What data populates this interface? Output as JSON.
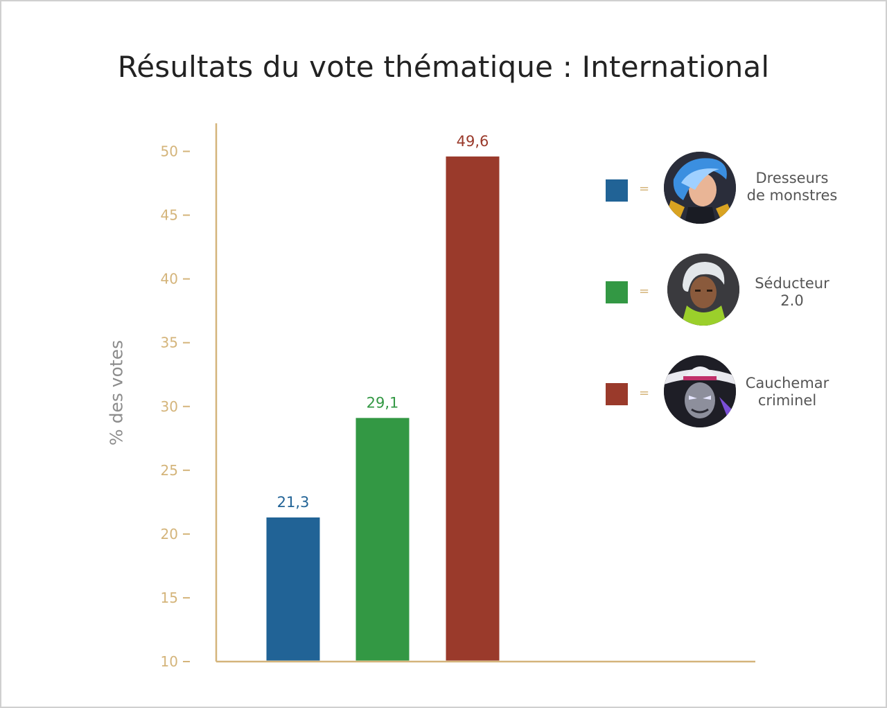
{
  "chart_data": {
    "type": "bar",
    "title": "Résultats du vote thématique : International",
    "ylabel": "% des votes",
    "xlabel": "",
    "ylim": [
      10,
      52
    ],
    "yticks": [
      10,
      15,
      20,
      25,
      30,
      35,
      40,
      45,
      50
    ],
    "categories": [
      "Dresseurs de monstres",
      "Séducteur 2.0",
      "Cauchemar criminel"
    ],
    "values": [
      21.3,
      29.1,
      49.6
    ],
    "value_labels": [
      "21,3",
      "29,1",
      "49,6"
    ],
    "colors": [
      "#216396",
      "#339844",
      "#9a3a2b"
    ],
    "legend_placement": "right",
    "grid": false
  },
  "legend": [
    {
      "symbol": "=",
      "line1": "Dresseurs",
      "line2": "de monstres",
      "avatar_icon": "blue-haired-character-icon"
    },
    {
      "symbol": "=",
      "line1": "Séducteur",
      "line2": "2.0",
      "avatar_icon": "white-haired-character-icon"
    },
    {
      "symbol": "=",
      "line1": "Cauchemar",
      "line2": "criminel",
      "avatar_icon": "masked-villain-character-icon"
    }
  ],
  "axis_color": "#d4b47a"
}
